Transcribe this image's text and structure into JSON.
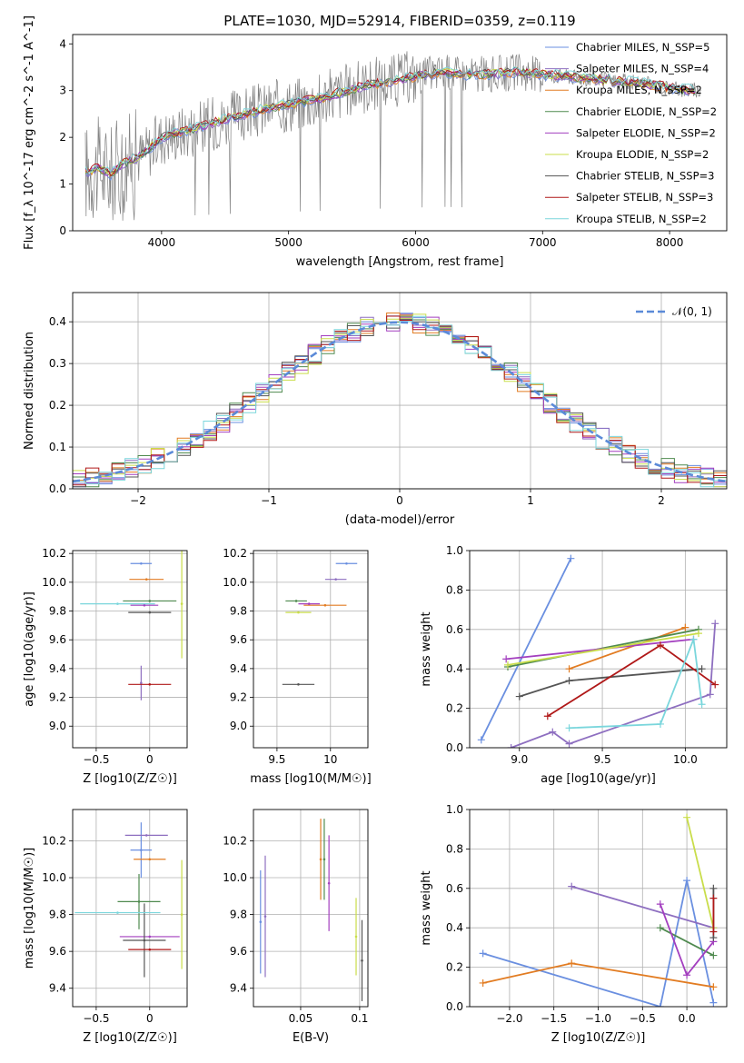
{
  "figure_title": "PLATE=1030, MJD=52914, FIBERID=0359, z=0.119",
  "model_colors": [
    "#6a8fe0",
    "#8e6fc0",
    "#e27c22",
    "#4f8a4f",
    "#a33fbf",
    "#c9dd4a",
    "#555555",
    "#b01818",
    "#7ad6dc"
  ],
  "chart_data": [
    {
      "id": "spectrum",
      "type": "line",
      "xlabel": "wavelength [Angstrom, rest frame]",
      "ylabel": "Flux [f_λ 10^-17 erg cm^-2 s^-1 A^-1]",
      "xlim": [
        3300,
        8450
      ],
      "ylim": [
        0,
        4.2
      ],
      "xticks": [
        4000,
        5000,
        6000,
        7000,
        8000
      ],
      "yticks": [
        0,
        1,
        2,
        3,
        4
      ],
      "legend_position": "upper-right",
      "legend": [
        "Chabrier MILES, N_SSP=5",
        "Salpeter MILES, N_SSP=4",
        "Kroupa MILES, N_SSP=2",
        "Chabrier ELODIE, N_SSP=2",
        "Salpeter ELODIE, N_SSP=2",
        "Kroupa ELODIE, N_SSP=2",
        "Chabrier STELIB, N_SSP=3",
        "Salpeter STELIB, N_SSP=3",
        "Kroupa STELIB, N_SSP=2"
      ],
      "continuum": {
        "x": [
          3400,
          3500,
          3600,
          3700,
          3800,
          3900,
          4000,
          4200,
          4400,
          4600,
          4800,
          5000,
          5200,
          5400,
          5600,
          5800,
          6000,
          6200,
          6400,
          6600,
          6800,
          7000,
          7200,
          7400,
          7600,
          7800,
          8000,
          8200
        ],
        "y": [
          1.25,
          1.35,
          1.2,
          1.45,
          1.55,
          1.75,
          2.0,
          2.15,
          2.3,
          2.45,
          2.6,
          2.7,
          2.8,
          2.95,
          3.1,
          3.2,
          3.3,
          3.4,
          3.35,
          3.35,
          3.4,
          3.35,
          3.3,
          3.25,
          3.2,
          3.15,
          3.05,
          3.0
        ]
      }
    },
    {
      "id": "residual-histogram",
      "type": "histogram",
      "xlabel": "(data-model)/error",
      "ylabel": "Normed distribution",
      "xlim": [
        -2.5,
        2.5
      ],
      "ylim": [
        0,
        0.47
      ],
      "xticks": [
        -2,
        -1,
        0,
        1,
        2
      ],
      "yticks": [
        0.0,
        0.1,
        0.2,
        0.3,
        0.4
      ],
      "legend": [
        "𝒩(0, 1)"
      ],
      "legend_position": "upper-right",
      "bin_width": 0.1
    },
    {
      "id": "age-vs-Z",
      "type": "errorbar",
      "xlabel": "Z [log10(Z/Z☉)]",
      "ylabel": "age  [log10(age/yr)]",
      "xlim": [
        -0.72,
        0.35
      ],
      "ylim": [
        8.85,
        10.22
      ],
      "xticks": [
        -0.5,
        0.0
      ],
      "yticks": [
        9.0,
        9.2,
        9.4,
        9.6,
        9.8,
        10.0,
        10.2
      ],
      "points": [
        {
          "x": -0.08,
          "y": 10.13,
          "xerr": 0.1,
          "yerr": 0.0
        },
        {
          "x": -0.08,
          "y": 9.3,
          "xerr": 0.0,
          "yerr": 0.12
        },
        {
          "x": -0.03,
          "y": 10.02,
          "xerr": 0.16,
          "yerr": 0.0
        },
        {
          "x": 0.0,
          "y": 9.87,
          "xerr": 0.25,
          "yerr": 0.0
        },
        {
          "x": -0.05,
          "y": 9.84,
          "xerr": 0.13,
          "yerr": 0.0
        },
        {
          "x": 0.3,
          "y": 9.85,
          "xerr": 0.0,
          "yerr": 0.0
        },
        {
          "x": 0.0,
          "y": 9.79,
          "xerr": 0.2,
          "yerr": 0.0
        },
        {
          "x": 0.0,
          "y": 9.29,
          "xerr": 0.2,
          "yerr": 0.0
        },
        {
          "x": -0.3,
          "y": 9.85,
          "xerr": 0.35,
          "yerr": 0.0
        }
      ]
    },
    {
      "id": "age-vs-mass",
      "type": "errorbar",
      "xlabel": "mass [log10(M/M☉)]",
      "ylabel": "",
      "xlim": [
        9.28,
        10.35
      ],
      "ylim": [
        8.85,
        10.22
      ],
      "xticks": [
        9.5,
        10.0
      ],
      "yticks": [
        9.0,
        9.2,
        9.4,
        9.6,
        9.8,
        10.0,
        10.2
      ],
      "points": [
        {
          "x": 10.15,
          "y": 10.13,
          "xerr": 0.1,
          "yerr": 0.0
        },
        {
          "x": 10.05,
          "y": 10.02,
          "xerr": 0.1,
          "yerr": 0.0
        },
        {
          "x": 9.95,
          "y": 9.84,
          "xerr": 0.2,
          "yerr": 0.0
        },
        {
          "x": 9.68,
          "y": 9.87,
          "xerr": 0.1,
          "yerr": 0.0
        },
        {
          "x": 9.8,
          "y": 9.85,
          "xerr": 0.1,
          "yerr": 0.0
        },
        {
          "x": 9.7,
          "y": 9.79,
          "xerr": 0.12,
          "yerr": 0.0
        },
        {
          "x": 9.7,
          "y": 9.29,
          "xerr": 0.15,
          "yerr": 0.0
        }
      ]
    },
    {
      "id": "weight-vs-age",
      "type": "line",
      "xlabel": "age  [log10(age/yr)]",
      "ylabel": "mass weight",
      "xlim": [
        8.7,
        10.25
      ],
      "ylim": [
        0,
        1.0
      ],
      "xticks": [
        9.0,
        9.5,
        10.0
      ],
      "yticks": [
        0.0,
        0.2,
        0.4,
        0.6,
        0.8,
        1.0
      ],
      "series": [
        {
          "x": [
            8.77,
            9.31
          ],
          "y": [
            0.04,
            0.96
          ]
        },
        {
          "x": [
            8.95,
            9.2,
            9.3,
            10.15,
            10.18
          ],
          "y": [
            0.0,
            0.08,
            0.02,
            0.27,
            0.63
          ]
        },
        {
          "x": [
            9.3,
            10.0
          ],
          "y": [
            0.4,
            0.61
          ]
        },
        {
          "x": [
            8.93,
            10.08
          ],
          "y": [
            0.41,
            0.6
          ]
        },
        {
          "x": [
            8.92,
            10.05
          ],
          "y": [
            0.45,
            0.55
          ]
        },
        {
          "x": [
            8.93,
            10.08
          ],
          "y": [
            0.42,
            0.58
          ]
        },
        {
          "x": [
            9.0,
            9.3,
            10.1
          ],
          "y": [
            0.26,
            0.34,
            0.4
          ]
        },
        {
          "x": [
            9.17,
            9.85,
            10.18
          ],
          "y": [
            0.16,
            0.52,
            0.32
          ]
        },
        {
          "x": [
            9.3,
            9.85,
            10.05,
            10.1
          ],
          "y": [
            0.1,
            0.12,
            0.55,
            0.22
          ]
        }
      ]
    },
    {
      "id": "mass-vs-Z",
      "type": "errorbar",
      "xlabel": "Z [log10(Z/Z☉)]",
      "ylabel": "mass [log10(M/M☉)]",
      "xlim": [
        -0.72,
        0.35
      ],
      "ylim": [
        9.3,
        10.37
      ],
      "xticks": [
        -0.5,
        0.0
      ],
      "yticks": [
        9.4,
        9.6,
        9.8,
        10.0,
        10.2
      ],
      "points": [
        {
          "x": -0.08,
          "y": 10.15,
          "xerr": 0.1,
          "yerr": 0.15
        },
        {
          "x": -0.03,
          "y": 10.23,
          "xerr": 0.2,
          "yerr": 0.0
        },
        {
          "x": 0.0,
          "y": 10.1,
          "xerr": 0.15,
          "yerr": 0.0
        },
        {
          "x": -0.1,
          "y": 9.87,
          "xerr": 0.2,
          "yerr": 0.15
        },
        {
          "x": 0.0,
          "y": 9.68,
          "xerr": 0.28,
          "yerr": 0.0
        },
        {
          "x": 0.3,
          "y": 9.8,
          "xerr": 0.0,
          "yerr": 0.0
        },
        {
          "x": -0.05,
          "y": 9.66,
          "xerr": 0.2,
          "yerr": 0.2
        },
        {
          "x": 0.0,
          "y": 9.61,
          "xerr": 0.2,
          "yerr": 0.0
        },
        {
          "x": -0.3,
          "y": 9.81,
          "xerr": 0.4,
          "yerr": 0.0
        }
      ]
    },
    {
      "id": "mass-vs-ebv",
      "type": "errorbar",
      "xlabel": "E(B-V)",
      "ylabel": "",
      "xlim": [
        0.01,
        0.107
      ],
      "ylim": [
        9.3,
        10.37
      ],
      "xticks": [
        0.05,
        0.1
      ],
      "yticks": [
        9.4,
        9.6,
        9.8,
        10.0,
        10.2
      ],
      "points": [
        {
          "x": 0.016,
          "y": 9.76,
          "xerr": 0.0,
          "yerr": 0.28
        },
        {
          "x": 0.02,
          "y": 9.79,
          "xerr": 0.0,
          "yerr": 0.33
        },
        {
          "x": 0.067,
          "y": 10.1,
          "xerr": 0.0,
          "yerr": 0.22
        },
        {
          "x": 0.07,
          "y": 10.1,
          "xerr": 0.0,
          "yerr": 0.22
        },
        {
          "x": 0.074,
          "y": 9.97,
          "xerr": 0.0,
          "yerr": 0.26
        },
        {
          "x": 0.097,
          "y": 9.68,
          "xerr": 0.0,
          "yerr": 0.21
        },
        {
          "x": 0.102,
          "y": 9.55,
          "xerr": 0.0,
          "yerr": 0.22
        }
      ]
    },
    {
      "id": "weight-vs-Z",
      "type": "line",
      "xlabel": "Z [log10(Z/Z☉)]",
      "ylabel": "mass weight",
      "xlim": [
        -2.45,
        0.45
      ],
      "ylim": [
        0,
        1.0
      ],
      "xticks": [
        -2.0,
        -1.5,
        -1.0,
        -0.5,
        0.0
      ],
      "yticks": [
        0.0,
        0.2,
        0.4,
        0.6,
        0.8,
        1.0
      ],
      "series": [
        {
          "x": [
            -2.3,
            -0.3,
            0.0,
            0.3
          ],
          "y": [
            0.27,
            0.0,
            0.64,
            0.02
          ]
        },
        {
          "x": [
            -1.3,
            0.3
          ],
          "y": [
            0.61,
            0.4
          ]
        },
        {
          "x": [
            -2.3,
            -1.3,
            0.3
          ],
          "y": [
            0.12,
            0.22,
            0.1
          ]
        },
        {
          "x": [
            -0.3,
            0.3
          ],
          "y": [
            0.4,
            0.26
          ]
        },
        {
          "x": [
            -0.3,
            0.0,
            0.3
          ],
          "y": [
            0.52,
            0.16,
            0.33
          ]
        },
        {
          "x": [
            0.0,
            0.3
          ],
          "y": [
            0.96,
            0.4
          ]
        },
        {
          "x": [
            0.3,
            0.3
          ],
          "y": [
            0.6,
            0.35
          ]
        },
        {
          "x": [
            0.3,
            0.3
          ],
          "y": [
            0.55,
            0.38
          ]
        }
      ]
    }
  ]
}
